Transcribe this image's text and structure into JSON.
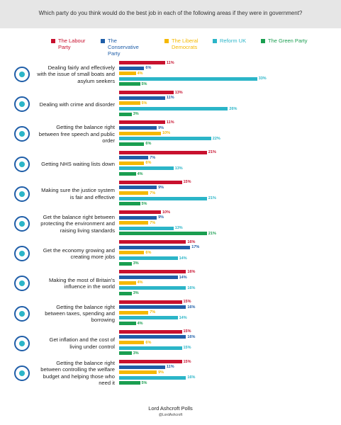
{
  "chart_data": {
    "type": "bar",
    "orientation": "horizontal",
    "title": "Which party do you think would do the best job in each of the following areas if they were in government?",
    "categories": [
      "Dealing fairly and effectively with the issue of small boats and asylum seekers",
      "Dealing with crime and disorder",
      "Getting the balance right between free speech and public order",
      "Getting NHS waiting lists down",
      "Making sure the justice system is fair and effective",
      "Get the balance right between protecting the environment and raising living standards",
      "Get the economy growing and creating more jobs",
      "Making the most of Britain's influence in the world",
      "Getting the balance right between taxes, spending and borrowing",
      "Get inflation and the cost of living under control",
      "Getting the balance right between controlling the welfare budget and helping those who need it"
    ],
    "series": [
      {
        "name": "The Labour Party",
        "color": "#c8102e",
        "values": [
          11,
          13,
          11,
          21,
          15,
          10,
          16,
          16,
          15,
          15,
          15
        ],
        "value_labels": [
          "11%",
          "13%",
          "11%",
          "21%",
          "15%",
          "10%",
          "16%",
          "16%",
          "15%",
          "15%",
          "15%"
        ]
      },
      {
        "name": "The Conservative Party",
        "color": "#1f5ea8",
        "values": [
          6,
          11,
          9,
          7,
          9,
          9,
          17,
          14,
          16,
          16,
          11
        ],
        "value_labels": [
          "6%",
          "11%",
          "9%",
          "7%",
          "9%",
          "9%",
          "17%",
          "14%",
          "16%",
          "16%",
          "11%"
        ]
      },
      {
        "name": "The Liberal Democrats",
        "color": "#f5b800",
        "values": [
          4,
          5,
          10,
          6,
          7,
          7,
          6,
          4,
          7,
          6,
          9
        ],
        "value_labels": [
          "4%",
          "5%",
          "10%",
          "6%",
          "7%",
          "7%",
          "6%",
          "4%",
          "7%",
          "6%",
          "9%"
        ]
      },
      {
        "name": "Reform UK",
        "color": "#2bb5c8",
        "values": [
          33,
          26,
          22,
          13,
          21,
          13,
          14,
          16,
          14,
          15,
          16
        ],
        "value_labels": [
          "33%",
          "26%",
          "22%",
          "13%",
          "21%",
          "13%",
          "14%",
          "16%",
          "14%",
          "15%",
          "16%"
        ]
      },
      {
        "name": "The Green Party",
        "color": "#1a9e50",
        "values": [
          5,
          3,
          6,
          4,
          5,
          21,
          3,
          3,
          4,
          3,
          5
        ],
        "value_labels": [
          "5%",
          "3%",
          "6%",
          "4%",
          "5%",
          "21%",
          "3%",
          "3%",
          "4%",
          "3%",
          "5%"
        ]
      }
    ],
    "source": "Lord Ashcroft Polls",
    "handle": "@LordAshcroft"
  }
}
